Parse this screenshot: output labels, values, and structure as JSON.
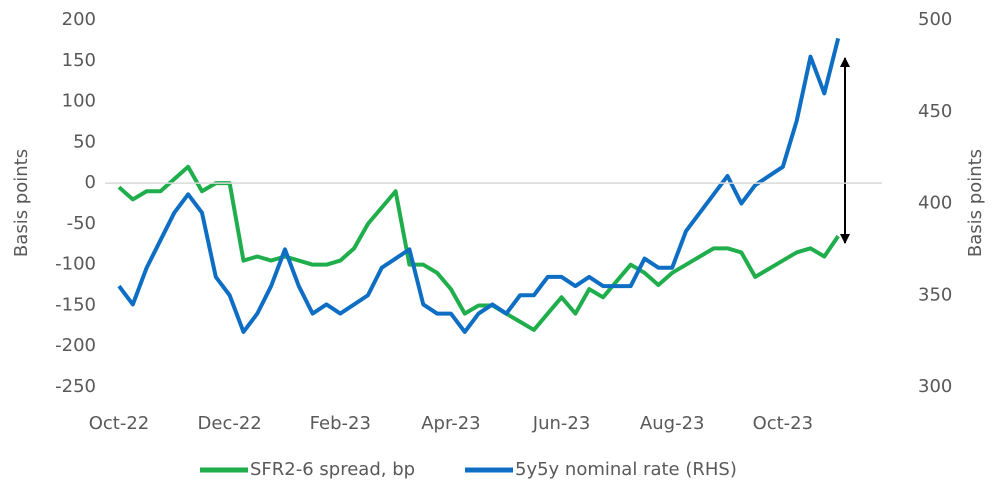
{
  "chart_data": {
    "type": "line",
    "ylabel": "Basis points",
    "y2label": "Basis points",
    "categories": [
      "Oct-22",
      null,
      null,
      null,
      null,
      null,
      null,
      null,
      "Dec-22",
      null,
      null,
      null,
      null,
      null,
      null,
      null,
      "Feb-23",
      null,
      null,
      null,
      null,
      null,
      null,
      null,
      "Apr-23",
      null,
      null,
      null,
      null,
      null,
      null,
      null,
      "Jun-23",
      null,
      null,
      null,
      null,
      null,
      null,
      null,
      "Aug-23",
      null,
      null,
      null,
      null,
      null,
      null,
      null,
      "Oct-23",
      null,
      null,
      null,
      null
    ],
    "ylim": [
      -250,
      200
    ],
    "yticks": [
      -250,
      -200,
      -150,
      -100,
      -50,
      0,
      50,
      100,
      150,
      200
    ],
    "y2lim": [
      300,
      500
    ],
    "y2ticks": [
      300,
      350,
      400,
      450,
      500
    ],
    "series": [
      {
        "name": "SFR2-6 spread, bp",
        "color": "#1fae4b",
        "axis": "y",
        "values": [
          -5,
          -20,
          -10,
          -10,
          5,
          20,
          -10,
          0,
          0,
          -95,
          -90,
          -95,
          -90,
          -95,
          -100,
          -100,
          -95,
          -80,
          -50,
          -30,
          -10,
          -100,
          -100,
          -110,
          -130,
          -160,
          -150,
          -150,
          -160,
          -170,
          -180,
          -160,
          -140,
          -160,
          -130,
          -140,
          -120,
          -100,
          -110,
          -125,
          -110,
          -100,
          -90,
          -80,
          -80,
          -85,
          -115,
          -105,
          -95,
          -85,
          -80,
          -90,
          -65
        ]
      },
      {
        "name": "5y5y nominal rate (RHS)",
        "color": "#0d6ec4",
        "axis": "y2",
        "values": [
          355,
          345,
          365,
          380,
          395,
          405,
          395,
          360,
          350,
          330,
          340,
          355,
          375,
          355,
          340,
          345,
          340,
          345,
          350,
          365,
          370,
          375,
          345,
          340,
          340,
          330,
          340,
          345,
          340,
          350,
          350,
          360,
          360,
          355,
          360,
          355,
          355,
          355,
          370,
          365,
          365,
          385,
          395,
          405,
          415,
          400,
          410,
          415,
          420,
          445,
          480,
          460,
          490
        ]
      }
    ]
  }
}
